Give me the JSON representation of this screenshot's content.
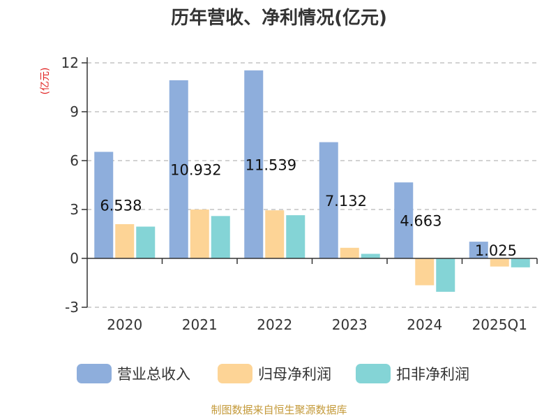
{
  "chart_data": {
    "type": "bar",
    "title": "历年营收、净利情况(亿元)",
    "unit_label": "(亿元)",
    "categories": [
      "2020",
      "2021",
      "2022",
      "2023",
      "2024",
      "2025Q1"
    ],
    "series": [
      {
        "name": "营业总收入",
        "color": "#8eaedc",
        "values": [
          6.538,
          10.932,
          11.539,
          7.132,
          4.663,
          1.025
        ]
      },
      {
        "name": "归母净利润",
        "color": "#fdd496",
        "values": [
          2.1,
          3.0,
          2.95,
          0.65,
          -1.65,
          -0.5
        ]
      },
      {
        "name": "扣非净利润",
        "color": "#84d4d6",
        "values": [
          1.95,
          2.6,
          2.65,
          0.28,
          -2.05,
          -0.55
        ]
      }
    ],
    "data_labels": [
      "6.538",
      "10.932",
      "11.539",
      "7.132",
      "4.663",
      "1.025"
    ],
    "ylim": [
      -3,
      12
    ],
    "yticks": [
      -3,
      0,
      3,
      6,
      9,
      12
    ],
    "grid": true,
    "legend_position": "bottom"
  },
  "footer": {
    "source": "制图数据来自恒生聚源数据库"
  }
}
